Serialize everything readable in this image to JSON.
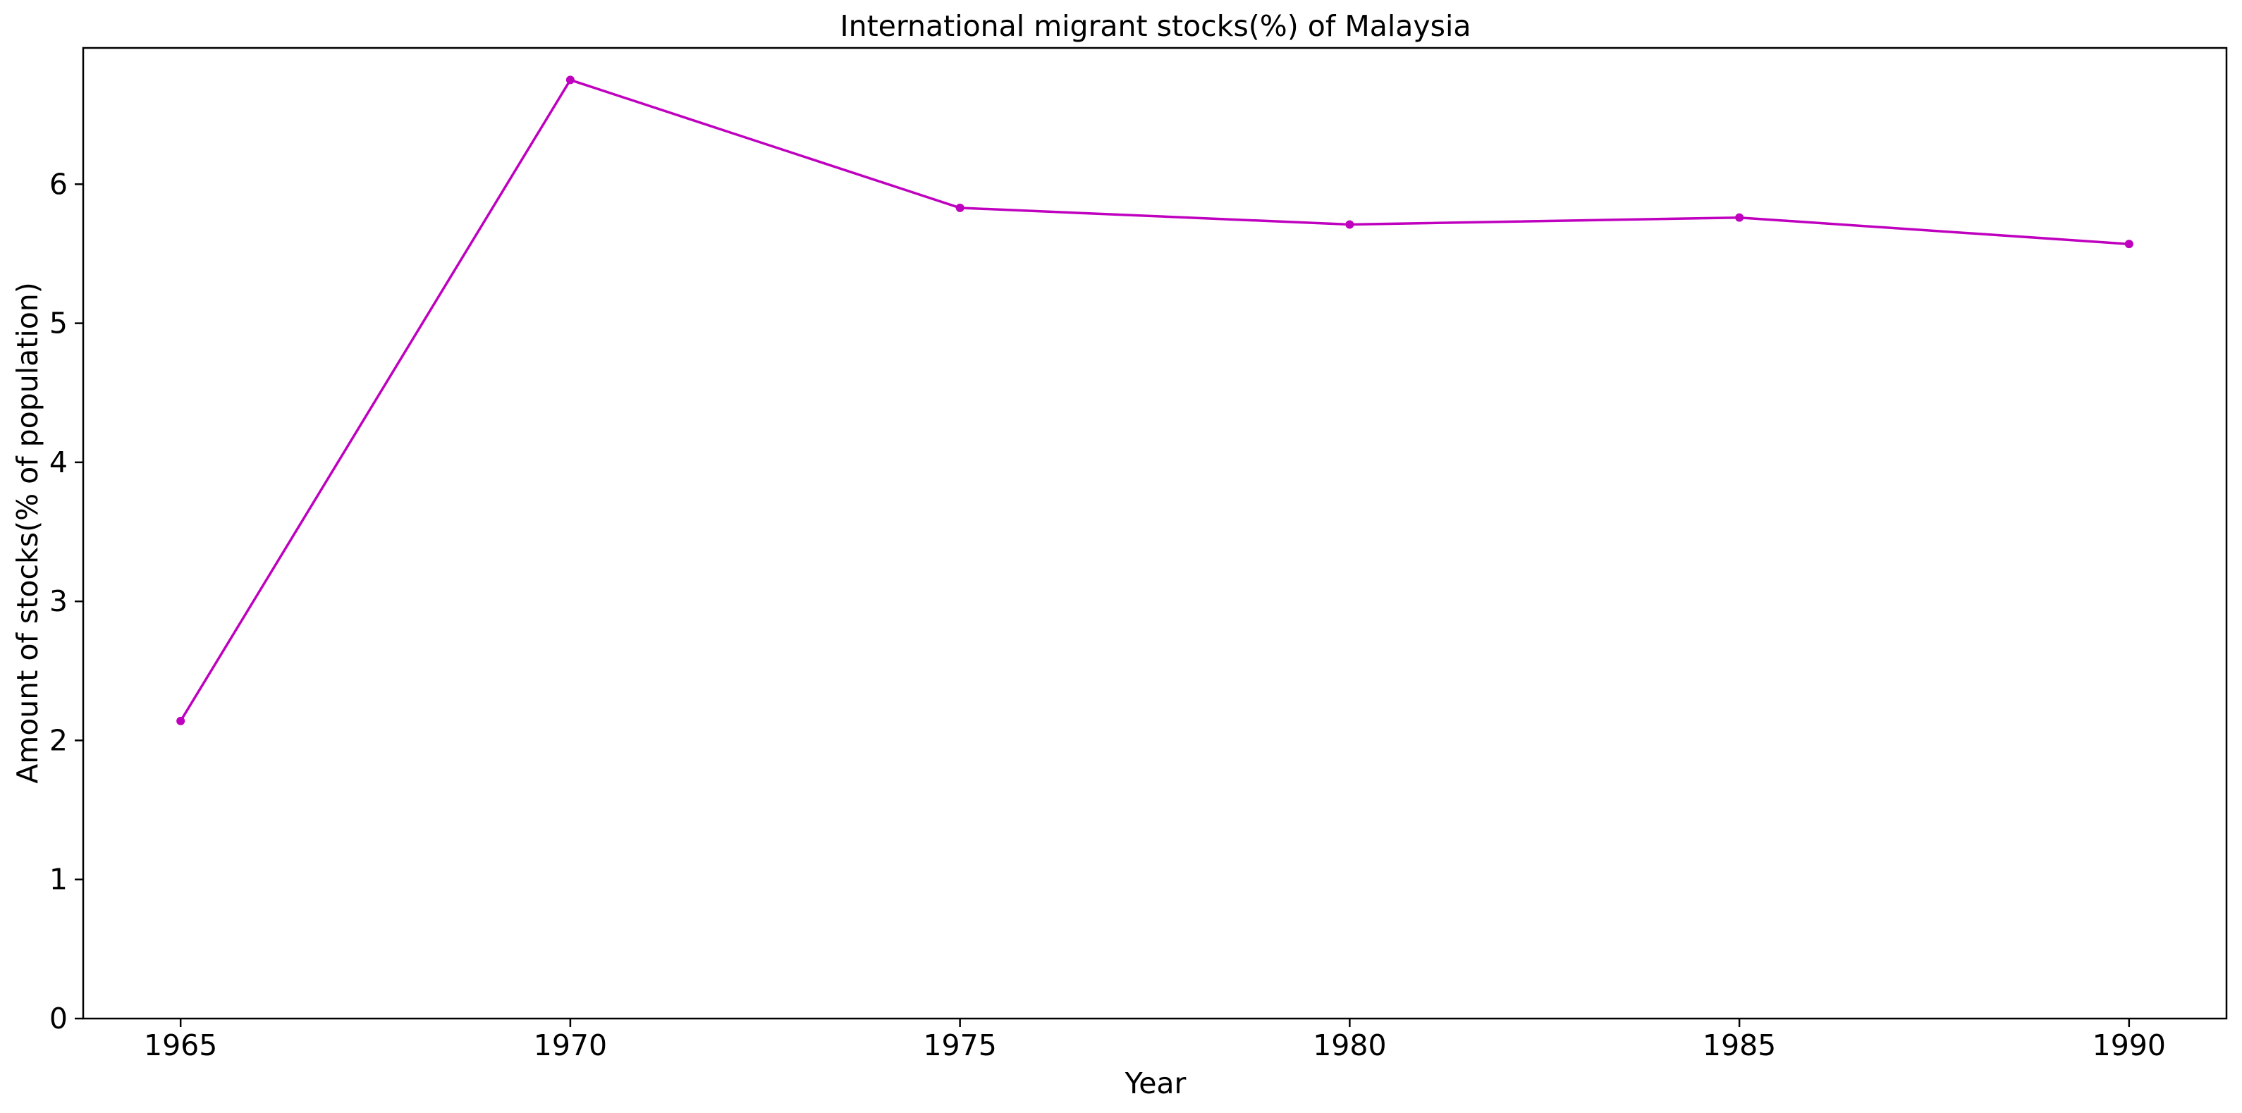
{
  "chart_data": {
    "type": "line",
    "title": "International migrant stocks(%) of Malaysia",
    "xlabel": "Year",
    "ylabel": "Amount of stocks(% of population)",
    "x": [
      1965,
      1970,
      1975,
      1980,
      1985,
      1990
    ],
    "series": [
      {
        "values": [
          2.14,
          6.75,
          5.83,
          5.71,
          5.76,
          5.57
        ],
        "color": "#bf00bf"
      }
    ],
    "xticks": [
      "1965",
      "1970",
      "1975",
      "1980",
      "1985",
      "1990"
    ],
    "yticks": [
      "0",
      "1",
      "2",
      "3",
      "4",
      "5",
      "6"
    ],
    "xlim": [
      1963.75,
      1991.25
    ],
    "ylim": [
      0,
      6.98
    ],
    "grid": false,
    "legend": "none"
  }
}
